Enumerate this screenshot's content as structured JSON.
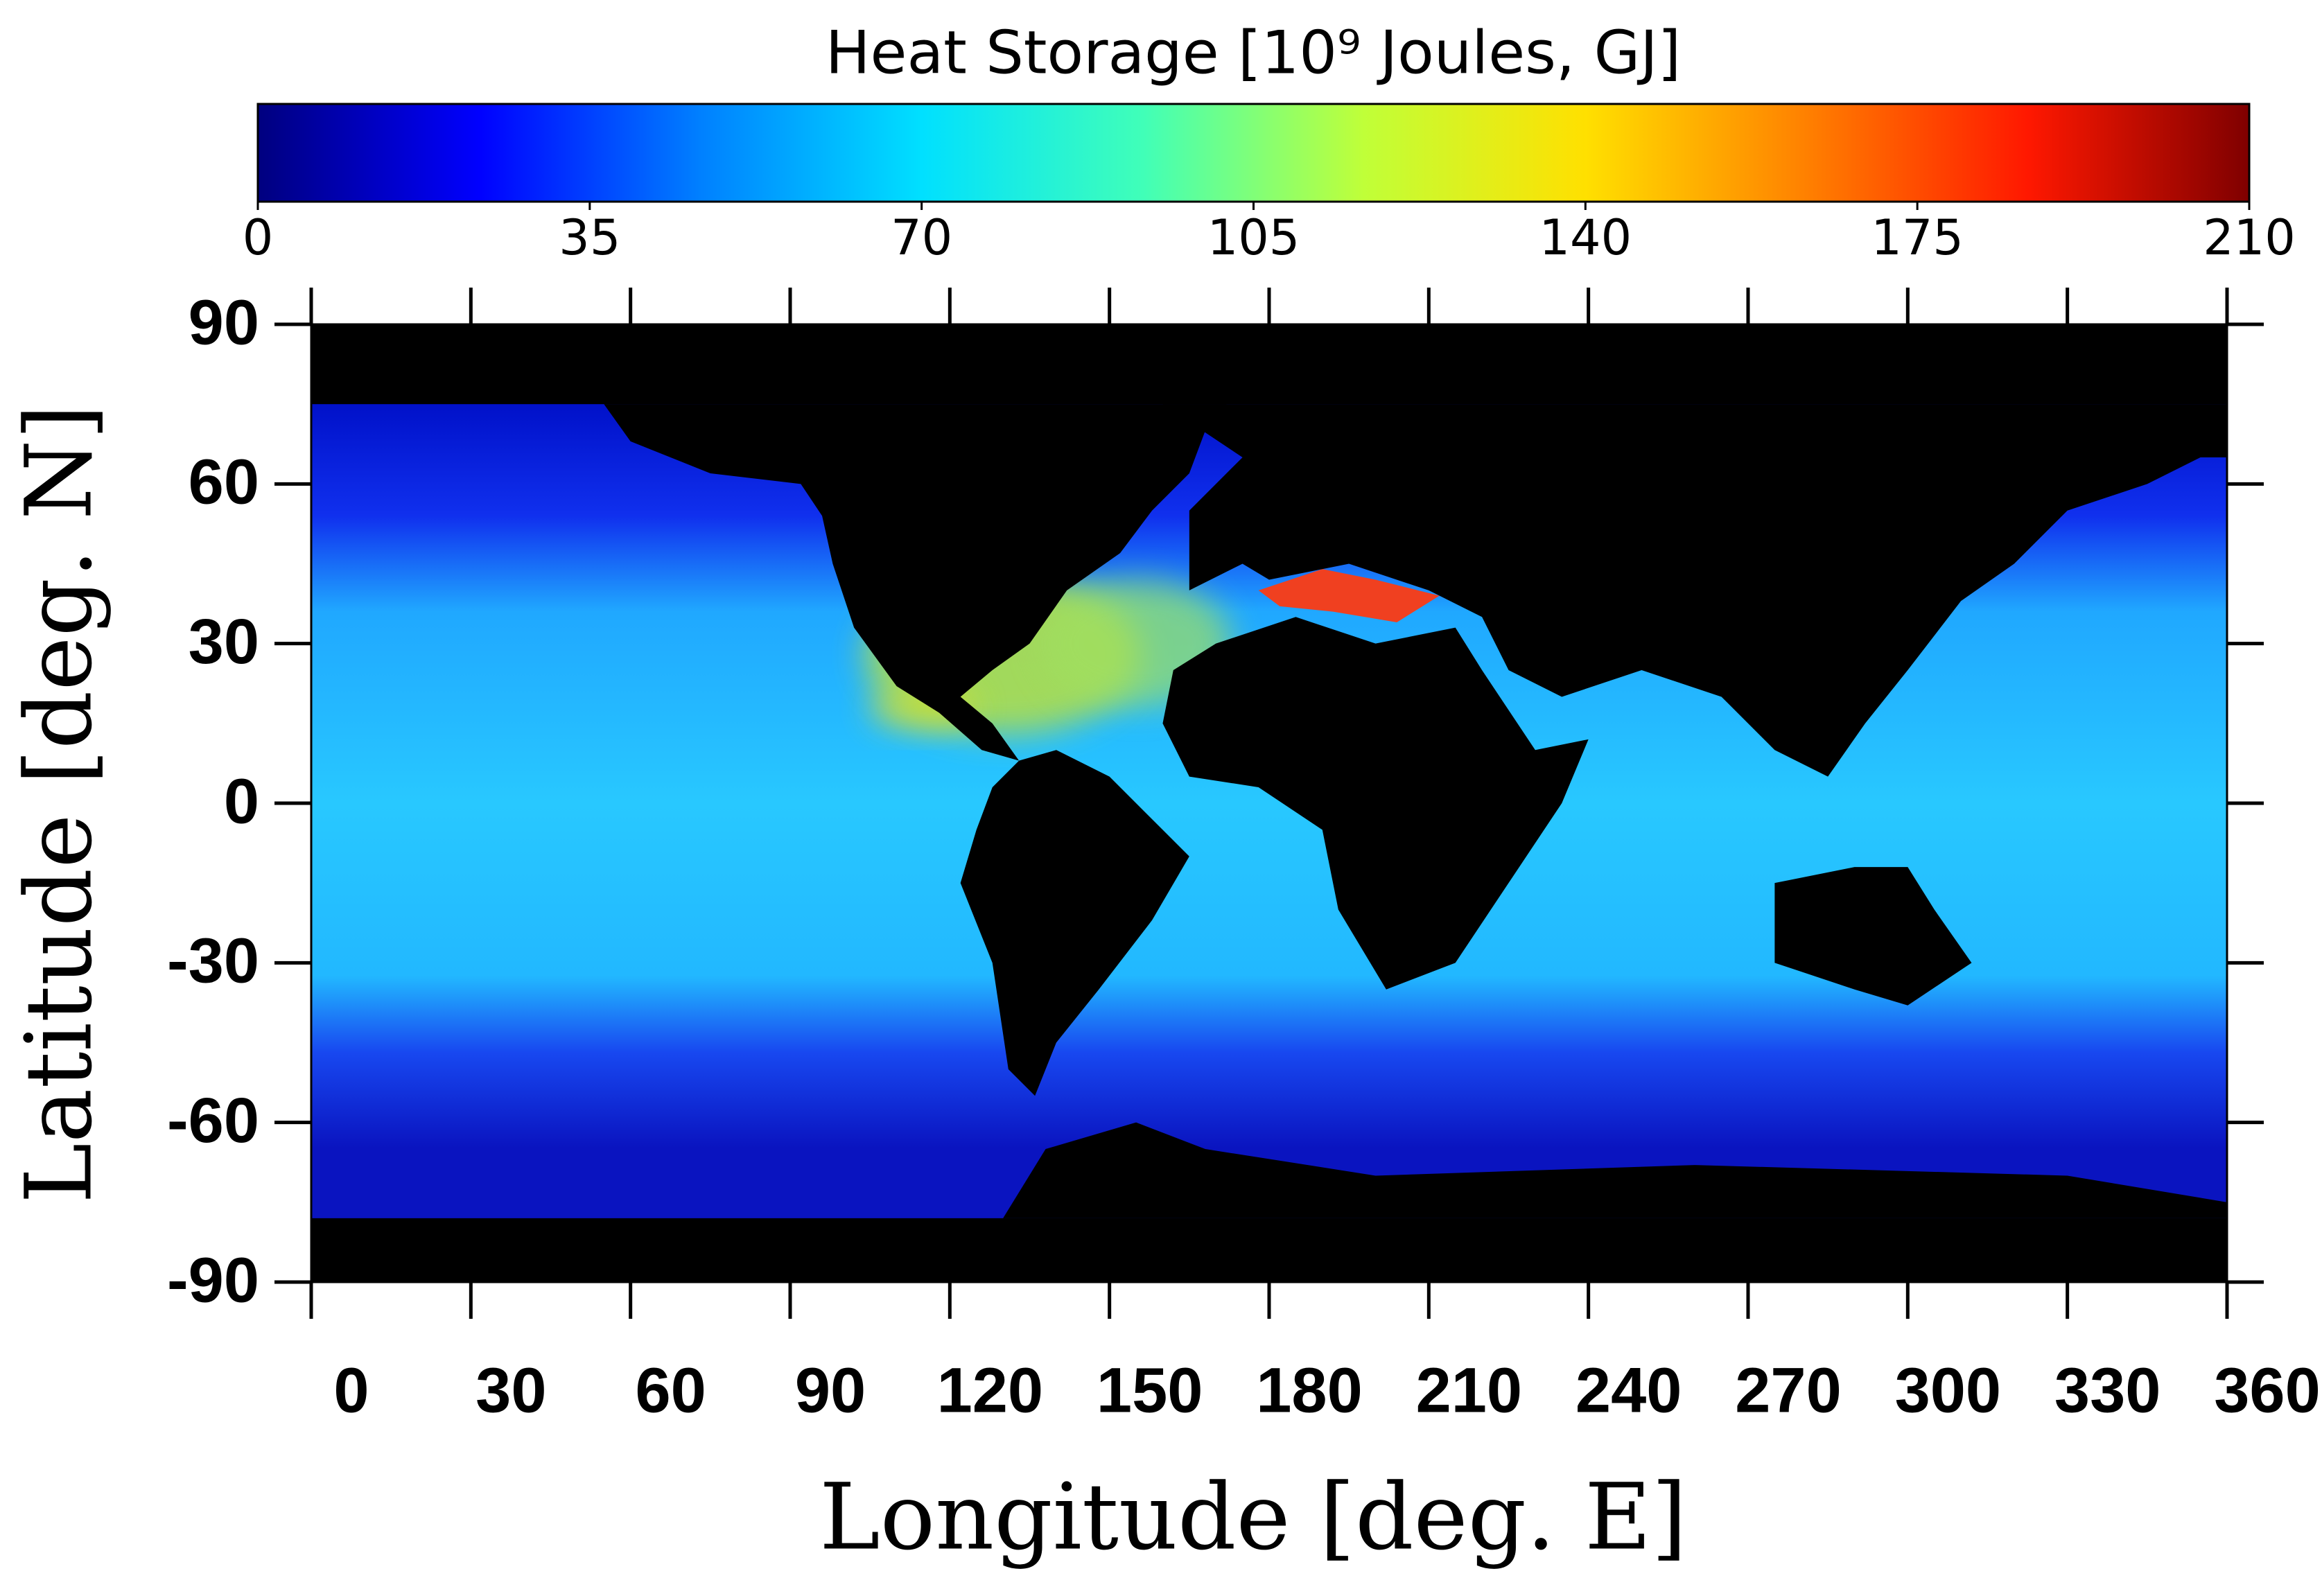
{
  "chart_data": {
    "type": "heatmap",
    "colorbar_title": "Heat Storage [10⁹ Joules, GJ]",
    "colorbar_lim": [
      0,
      210
    ],
    "colorbar_ticks": [
      0,
      35,
      70,
      105,
      140,
      175,
      210
    ],
    "colormap": [
      "#00007f",
      "#0000ff",
      "#0080ff",
      "#00e0ff",
      "#40ffb8",
      "#c0ff38",
      "#ffe000",
      "#ff8000",
      "#ff1800",
      "#7f0000"
    ],
    "xlabel": "Longitude [deg. E]",
    "ylabel": "Latitude [deg. N]",
    "xlim": [
      0,
      360
    ],
    "xticks": [
      0,
      30,
      60,
      90,
      120,
      150,
      180,
      210,
      240,
      270,
      300,
      330,
      360
    ],
    "ylim": [
      -90,
      90
    ],
    "yticks": [
      -90,
      -60,
      -30,
      0,
      30,
      60,
      90
    ]
  }
}
